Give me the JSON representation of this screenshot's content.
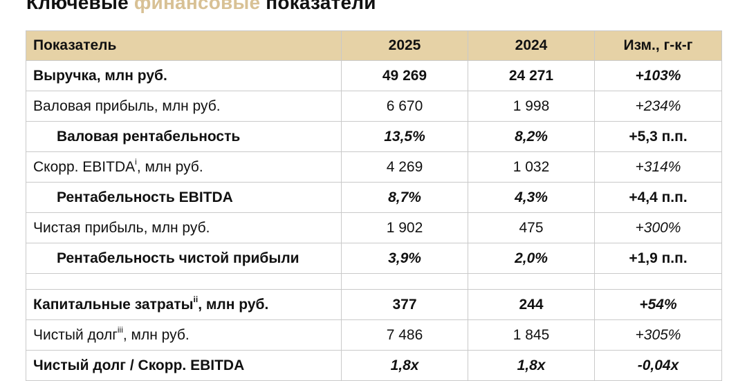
{
  "title": {
    "part1": "Ключевые ",
    "accent": "финансовые",
    "part2": " показатели"
  },
  "colors": {
    "header_bg": "#e6d2a6",
    "accent_text": "#d8c195",
    "border": "#c9c9c9"
  },
  "table": {
    "headers": [
      "Показатель",
      "2025",
      "2024",
      "Изм., г-к-г"
    ],
    "rows": [
      {
        "label": "Выручка, млн руб.",
        "sup": "",
        "suffix": "",
        "v2025": "49 269",
        "v2024": "24 271",
        "change": "+103%"
      },
      {
        "label": "Валовая прибыль, млн руб.",
        "sup": "",
        "suffix": "",
        "v2025": "6 670",
        "v2024": "1 998",
        "change": "+234%"
      },
      {
        "label": "Валовая рентабельность",
        "sup": "",
        "suffix": "",
        "v2025": "13,5%",
        "v2024": "8,2%",
        "change": "+5,3 п.п."
      },
      {
        "label": "Скорр. EBITDA",
        "sup": "i",
        "suffix": ", млн руб.",
        "v2025": "4 269",
        "v2024": "1 032",
        "change": "+314%"
      },
      {
        "label": "Рентабельность EBITDA",
        "sup": "",
        "suffix": "",
        "v2025": "8,7%",
        "v2024": "4,3%",
        "change": "+4,4 п.п."
      },
      {
        "label": "Чистая прибыль, млн руб.",
        "sup": "",
        "suffix": "",
        "v2025": "1 902",
        "v2024": "475",
        "change": "+300%"
      },
      {
        "label": "Рентабельность чистой прибыли",
        "sup": "",
        "suffix": "",
        "v2025": "3,9%",
        "v2024": "2,0%",
        "change": "+1,9 п.п."
      },
      {
        "label": "Капитальные затраты",
        "sup": "ii",
        "suffix": ", млн руб.",
        "v2025": "377",
        "v2024": "244",
        "change": "+54%"
      },
      {
        "label": "Чистый долг",
        "sup": "iii",
        "suffix": ", млн руб.",
        "v2025": "7 486",
        "v2024": "1 845",
        "change": "+305%"
      },
      {
        "label": "Чистый долг / Скорр. EBITDA",
        "sup": "",
        "suffix": "",
        "v2025": "1,8x",
        "v2024": "1,8x",
        "change": "-0,04x"
      }
    ]
  }
}
